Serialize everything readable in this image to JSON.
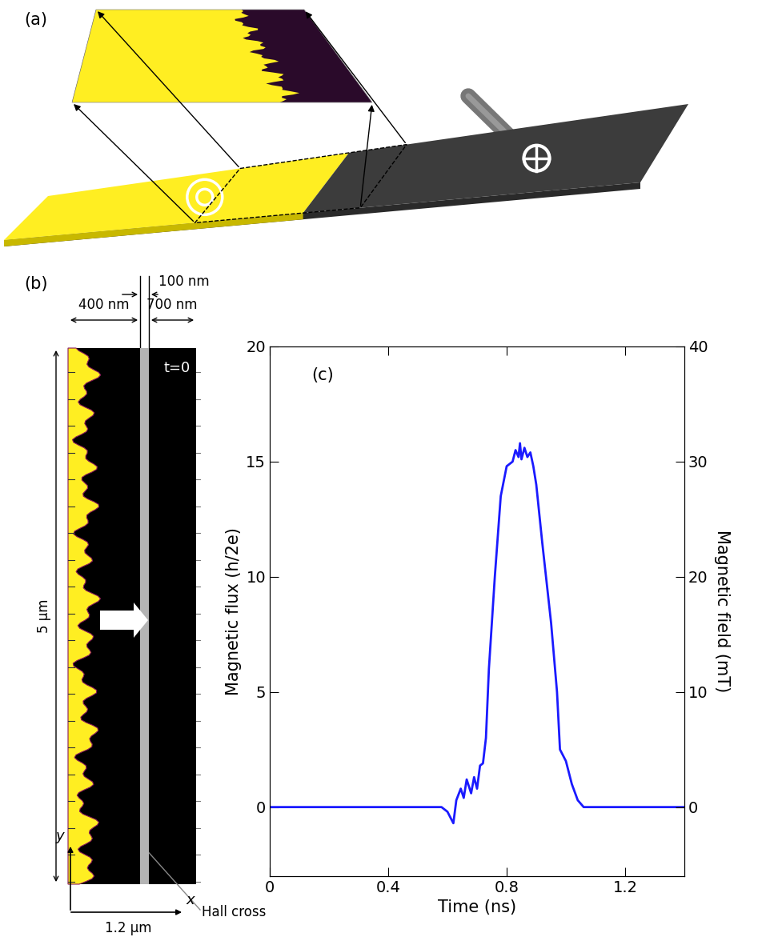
{
  "chart_data": {
    "type": "line",
    "label": "(c)",
    "x_label": "Time (ns)",
    "y_label": "Magnetic flux (h/2e)",
    "y2_label": "Magnetic field (mT)",
    "xlim": [
      0,
      1.4
    ],
    "xticks": [
      0,
      0.4,
      0.8,
      1.2
    ],
    "ylim": [
      -3,
      20
    ],
    "yticks": [
      0,
      5,
      10,
      15,
      20
    ],
    "y2lim": [
      -6,
      40
    ],
    "y2ticks": [
      0,
      10,
      20,
      30,
      40
    ],
    "color": "#1a1aff",
    "x": [
      0,
      0.58,
      0.6,
      0.62,
      0.63,
      0.645,
      0.655,
      0.665,
      0.68,
      0.69,
      0.7,
      0.71,
      0.72,
      0.73,
      0.74,
      0.76,
      0.78,
      0.8,
      0.82,
      0.83,
      0.84,
      0.845,
      0.85,
      0.86,
      0.87,
      0.88,
      0.89,
      0.9,
      0.92,
      0.95,
      0.97,
      0.98,
      1.0,
      1.02,
      1.04,
      1.06,
      1.4
    ],
    "values": [
      0,
      0,
      -0.2,
      -0.7,
      0.3,
      0.8,
      0.4,
      1.2,
      0.6,
      1.3,
      0.8,
      1.8,
      1.9,
      3.0,
      6.0,
      10.0,
      13.5,
      14.8,
      15.0,
      15.5,
      15.2,
      15.8,
      15.1,
      15.6,
      15.2,
      15.4,
      14.8,
      14.0,
      11.5,
      8.0,
      5.0,
      2.5,
      2.0,
      1.0,
      0.3,
      0,
      0
    ]
  },
  "panel_a": {
    "label": "(a)"
  },
  "panel_b": {
    "label": "(b)",
    "dimensions": [
      "400 nm",
      "100 nm",
      "700 nm"
    ],
    "time_label": "t=0",
    "height_label": "5 μm",
    "width_label": "1.2 μm",
    "axis_labels": [
      "x",
      "y"
    ],
    "callout": "Hall cross"
  }
}
